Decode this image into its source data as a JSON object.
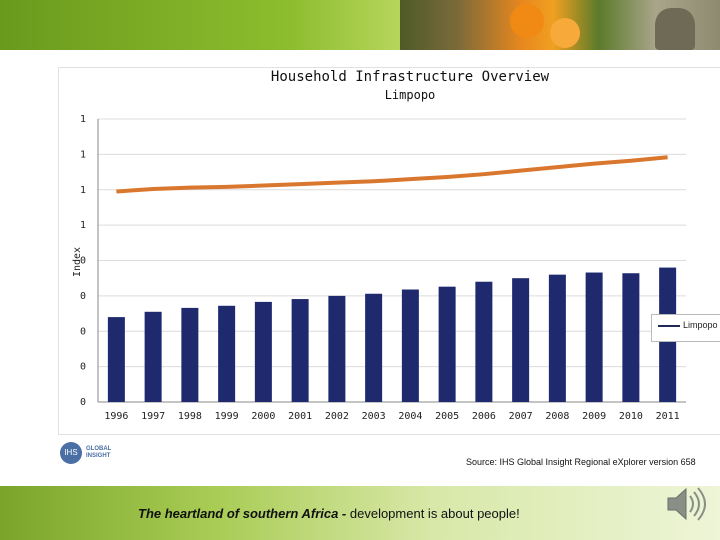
{
  "chart_data": {
    "type": "bar",
    "title": "Household Infrastructure Overview",
    "subtitle": "Limpopo",
    "ylabel": "Index",
    "categories": [
      "1996",
      "1997",
      "1998",
      "1999",
      "2000",
      "2001",
      "2002",
      "2003",
      "2004",
      "2005",
      "2006",
      "2007",
      "2008",
      "2009",
      "2010",
      "2011"
    ],
    "series": [
      {
        "kind": "bar",
        "values": [
          0.8,
          0.815,
          0.826,
          0.832,
          0.843,
          0.851,
          0.86,
          0.866,
          0.878,
          0.886,
          0.9,
          0.91,
          0.92,
          0.926,
          0.924,
          0.94
        ],
        "color": "#1f2a6e"
      },
      {
        "kind": "line",
        "name": "Limpopo",
        "values": [
          1.155,
          1.162,
          1.166,
          1.168,
          1.172,
          1.176,
          1.18,
          1.184,
          1.19,
          1.196,
          1.204,
          1.214,
          1.224,
          1.234,
          1.242,
          1.252
        ],
        "color": "#d9772e"
      }
    ],
    "ylim": [
      0.56,
      1.36
    ],
    "ytick_labels": [
      "0",
      "0",
      "0",
      "0",
      "0",
      "1",
      "1",
      "1",
      "1"
    ],
    "grid": true,
    "legend": "right"
  },
  "source": "Source: IHS Global Insight Regional eXplorer version 658",
  "logo_text": [
    "GLOBAL",
    "INSIGHT"
  ],
  "logo_mark": "IHS",
  "tagline_bold": "The heartland of southern Africa -",
  "tagline_rest": " development is about people!",
  "icons": {
    "speaker": "speaker-icon"
  }
}
